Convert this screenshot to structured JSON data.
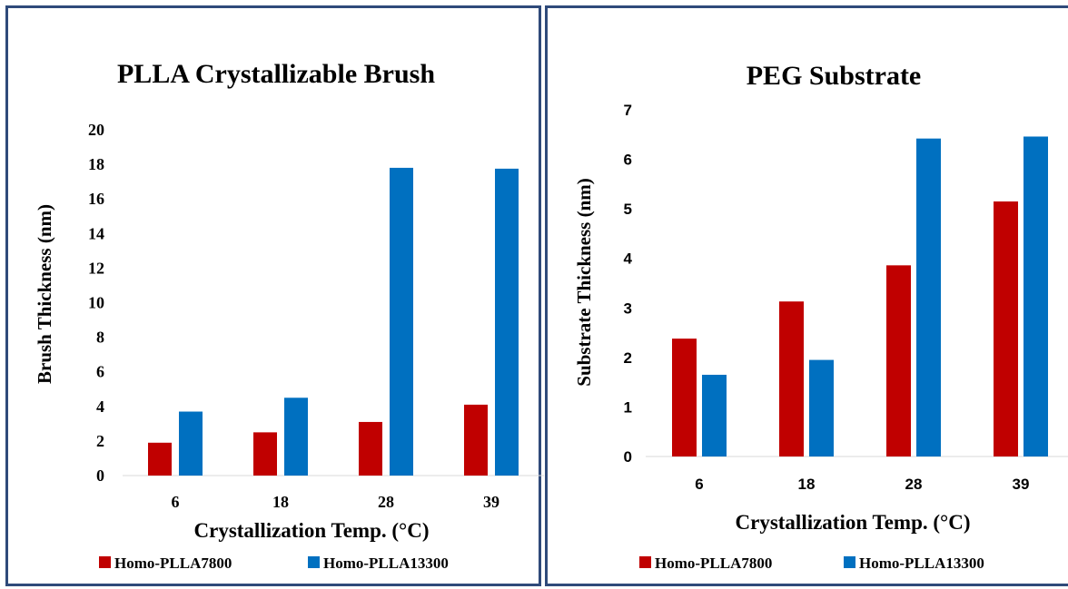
{
  "chart_data": [
    {
      "type": "bar",
      "title": "PLLA Crystallizable  Brush",
      "xlabel": "Crystallization  Temp. (°C)",
      "ylabel": "Brush Thickness (nm)",
      "categories": [
        "6",
        "18",
        "28",
        "39"
      ],
      "ylim": [
        0,
        20
      ],
      "yticks": [
        "0",
        "2",
        "4",
        "6",
        "8",
        "10",
        "12",
        "14",
        "16",
        "18",
        "20"
      ],
      "grid": false,
      "legend_position": "bottom",
      "series": [
        {
          "name": "Homo-PLLA7800",
          "color": "#c00000",
          "values": [
            1.9,
            2.5,
            3.1,
            4.1
          ]
        },
        {
          "name": "Homo-PLLA13300",
          "color": "#0070c0",
          "values": [
            3.7,
            4.5,
            17.8,
            17.75
          ]
        }
      ]
    },
    {
      "type": "bar",
      "title": "PEG Substrate",
      "xlabel": "Crystallization  Temp. (°C)",
      "ylabel": "Substrate Thickness (nm)",
      "categories": [
        "6",
        "18",
        "28",
        "39"
      ],
      "ylim": [
        0,
        7
      ],
      "yticks": [
        "0",
        "1",
        "2",
        "3",
        "4",
        "5",
        "6",
        "7"
      ],
      "grid": false,
      "legend_position": "bottom",
      "series": [
        {
          "name": "Homo-PLLA7800",
          "color": "#c00000",
          "values": [
            2.38,
            3.13,
            3.86,
            5.15
          ]
        },
        {
          "name": "Homo-PLLA13300",
          "color": "#0070c0",
          "values": [
            1.65,
            1.95,
            6.42,
            6.46
          ]
        }
      ]
    }
  ]
}
